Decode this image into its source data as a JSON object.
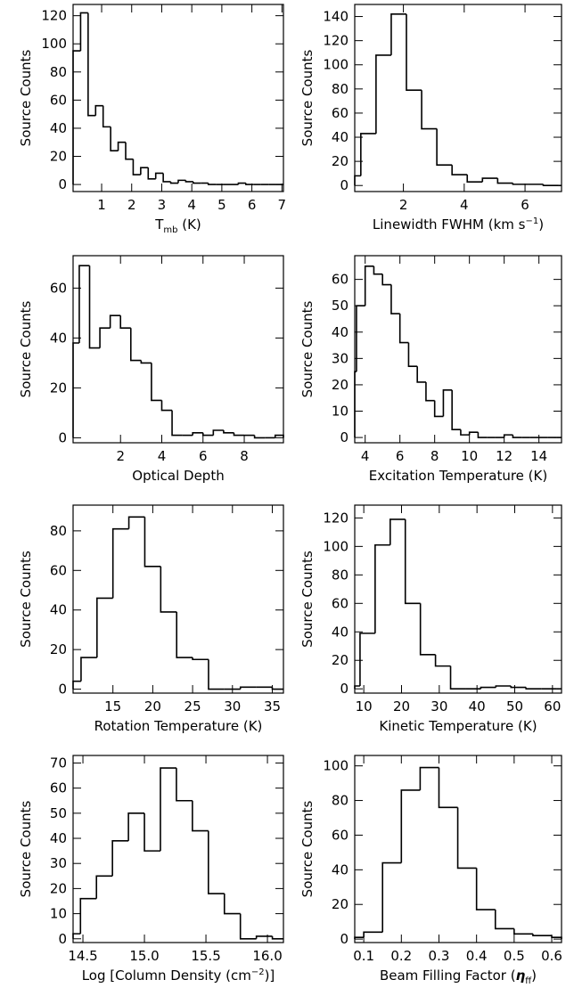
{
  "chart_data": [
    {
      "type": "histogram",
      "color": "#000000",
      "ylabel": "Source Counts",
      "xlabel": [
        {
          "text": "T"
        },
        {
          "text": "mb",
          "shift": "sub"
        },
        {
          "text": " (K)"
        }
      ],
      "bins": [
        0.05,
        0.3,
        0.55,
        0.8,
        1.05,
        1.3,
        1.55,
        1.8,
        2.05,
        2.3,
        2.55,
        2.8,
        3.05,
        3.3,
        3.55,
        3.8,
        4.05,
        4.3,
        4.55,
        4.8,
        5.05,
        5.3,
        5.55,
        5.8,
        6.05,
        6.3,
        6.55,
        6.8,
        7.05
      ],
      "values": [
        95,
        122,
        49,
        56,
        41,
        24,
        30,
        18,
        7,
        12,
        4,
        8,
        2,
        1,
        3,
        2,
        1,
        1,
        0,
        0,
        0,
        0,
        1,
        0,
        0,
        0,
        0,
        0
      ],
      "xlim": [
        0.05,
        7.05
      ],
      "xticks": [
        1,
        2,
        3,
        4,
        5,
        6,
        7
      ],
      "ylim": [
        -5,
        128
      ],
      "yticks": [
        0,
        20,
        40,
        60,
        80,
        100,
        120
      ]
    },
    {
      "type": "histogram",
      "color": "#000000",
      "ylabel": "Source Counts",
      "xlabel": [
        {
          "text": "Linewidth FWHM  (km s"
        },
        {
          "text": "−1",
          "shift": "sup"
        },
        {
          "text": ")"
        }
      ],
      "bins": [
        0.4,
        0.6,
        1.1,
        1.6,
        2.1,
        2.6,
        3.1,
        3.6,
        4.1,
        4.6,
        5.1,
        5.6,
        6.1,
        6.6,
        7.1,
        7.2
      ],
      "values": [
        8,
        43,
        108,
        142,
        79,
        47,
        17,
        9,
        3,
        6,
        2,
        1,
        1,
        0,
        0
      ],
      "xlim": [
        0.4,
        7.2
      ],
      "xticks": [
        2,
        4,
        6
      ],
      "ylim": [
        -5,
        150
      ],
      "yticks": [
        0,
        20,
        40,
        60,
        80,
        100,
        120,
        140
      ]
    },
    {
      "type": "histogram",
      "color": "#000000",
      "ylabel": "Source Counts",
      "xlabel": [
        {
          "text": "Optical Depth"
        }
      ],
      "bins": [
        -0.3,
        0,
        0.5,
        1,
        1.5,
        2,
        2.5,
        3,
        3.5,
        4,
        4.5,
        5,
        5.5,
        6,
        6.5,
        7,
        7.5,
        8,
        8.5,
        9,
        9.5,
        9.9
      ],
      "values": [
        38,
        69,
        36,
        44,
        49,
        44,
        31,
        30,
        15,
        11,
        1,
        1,
        2,
        1,
        3,
        2,
        1,
        1,
        0,
        0,
        1
      ],
      "xlim": [
        -0.3,
        9.9
      ],
      "xticks": [
        2,
        4,
        6,
        8
      ],
      "ylim": [
        -2,
        73
      ],
      "yticks": [
        0,
        20,
        40,
        60
      ]
    },
    {
      "type": "histogram",
      "color": "#000000",
      "ylabel": "Source Counts",
      "xlabel": [
        {
          "text": "Excitation Temperature (K)"
        }
      ],
      "bins": [
        3.4,
        3.5,
        4,
        4.5,
        5,
        5.5,
        6,
        6.5,
        7,
        7.5,
        8,
        8.5,
        9,
        9.5,
        10,
        10.5,
        11,
        11.5,
        12,
        12.5,
        13,
        13.5,
        14,
        14.5,
        15,
        15.3
      ],
      "values": [
        25,
        50,
        65,
        62,
        58,
        47,
        36,
        27,
        21,
        14,
        8,
        18,
        3,
        1,
        2,
        0,
        0,
        0,
        1,
        0,
        0,
        0,
        0,
        0,
        0
      ],
      "xlim": [
        3.4,
        15.3
      ],
      "xticks": [
        4,
        6,
        8,
        10,
        12,
        14
      ],
      "ylim": [
        -2,
        69
      ],
      "yticks": [
        0,
        10,
        20,
        30,
        40,
        50,
        60
      ]
    },
    {
      "type": "histogram",
      "color": "#000000",
      "ylabel": "Source Counts",
      "xlabel": [
        {
          "text": "Rotation Temperature   (K)"
        }
      ],
      "bins": [
        10,
        11,
        13,
        15,
        17,
        19,
        21,
        23,
        25,
        27,
        29,
        31,
        33,
        35,
        36.4
      ],
      "values": [
        4,
        16,
        46,
        81,
        87,
        62,
        39,
        16,
        15,
        0,
        0,
        1,
        1,
        0
      ],
      "xlim": [
        10,
        36.4
      ],
      "xticks": [
        15,
        20,
        25,
        30,
        35
      ],
      "ylim": [
        -2,
        93
      ],
      "yticks": [
        0,
        20,
        40,
        60,
        80
      ]
    },
    {
      "type": "histogram",
      "color": "#000000",
      "ylabel": "Source Counts",
      "xlabel": [
        {
          "text": "Kinetic Temperature    (K)"
        }
      ],
      "bins": [
        7.6,
        9,
        13,
        17,
        21,
        25,
        29,
        33,
        37,
        41,
        45,
        49,
        53,
        57,
        61,
        62.4
      ],
      "values": [
        2,
        39,
        101,
        119,
        60,
        24,
        16,
        0,
        0,
        1,
        2,
        1,
        0,
        0,
        0
      ],
      "xlim": [
        7.6,
        62.4
      ],
      "xticks": [
        10,
        20,
        30,
        40,
        50,
        60
      ],
      "ylim": [
        -3,
        129
      ],
      "yticks": [
        0,
        20,
        40,
        60,
        80,
        100,
        120
      ]
    },
    {
      "type": "histogram",
      "color": "#000000",
      "ylabel": "Source Counts",
      "xlabel": [
        {
          "text": "Log [Column Density (cm"
        },
        {
          "text": "−2",
          "shift": "sup"
        },
        {
          "text": ")]"
        }
      ],
      "bins": [
        14.42,
        14.48,
        14.61,
        14.74,
        14.87,
        15.0,
        15.13,
        15.26,
        15.39,
        15.52,
        15.65,
        15.78,
        15.91,
        16.04,
        16.13
      ],
      "values": [
        2,
        16,
        25,
        39,
        50,
        35,
        68,
        55,
        43,
        18,
        10,
        0,
        1,
        0
      ],
      "xlim": [
        14.42,
        16.13
      ],
      "xticks": [
        14.5,
        {
          "value": 15,
          "label": "15.0"
        },
        15.5,
        {
          "value": 16,
          "label": "16.0"
        }
      ],
      "ylim": [
        -1.5,
        73
      ],
      "yticks": [
        0,
        10,
        20,
        30,
        40,
        50,
        60,
        70
      ]
    },
    {
      "type": "histogram",
      "color": "#000000",
      "ylabel": "Source Counts",
      "xlabel": [
        {
          "text": "Beam Filling Factor ("
        },
        {
          "text": "η",
          "shift": "bold"
        },
        {
          "text": "ff",
          "shift": "sub"
        },
        {
          "text": ")"
        }
      ],
      "bins": [
        0.076,
        0.1,
        0.15,
        0.2,
        0.25,
        0.3,
        0.35,
        0.4,
        0.45,
        0.5,
        0.55,
        0.6,
        0.626
      ],
      "values": [
        1,
        4,
        44,
        86,
        99,
        76,
        41,
        17,
        6,
        3,
        2,
        1
      ],
      "xlim": [
        0.076,
        0.626
      ],
      "xticks": [
        0.1,
        0.2,
        0.3,
        0.4,
        0.5,
        0.6
      ],
      "ylim": [
        -2,
        106
      ],
      "yticks": [
        0,
        20,
        40,
        60,
        80,
        100
      ]
    }
  ]
}
